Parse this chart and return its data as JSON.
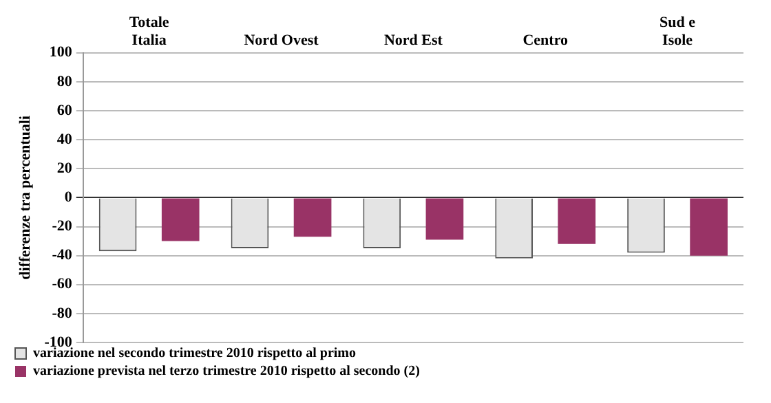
{
  "chart_data": {
    "type": "bar",
    "categories": [
      "Totale\nItalia",
      "Nord Ovest",
      "Nord Est",
      "Centro",
      "Sud e\nIsole"
    ],
    "ylabel": "differenze tra percentuali",
    "series": [
      {
        "name": "variazione nel secondo trimestre 2010 rispetto al primo",
        "color": "#e4e4e4",
        "values": [
          -37,
          -35,
          -35,
          -42,
          -38
        ]
      },
      {
        "name": "variazione prevista nel terzo trimestre 2010 rispetto al secondo (2)",
        "color": "#993366",
        "values": [
          -30,
          -27,
          -29,
          -32,
          -40
        ]
      }
    ],
    "ylim": [
      -100,
      100
    ],
    "yticks": [
      -100,
      -80,
      -60,
      -40,
      -20,
      0,
      20,
      40,
      60,
      80,
      100
    ],
    "grid": "y",
    "legend": "bottom"
  }
}
